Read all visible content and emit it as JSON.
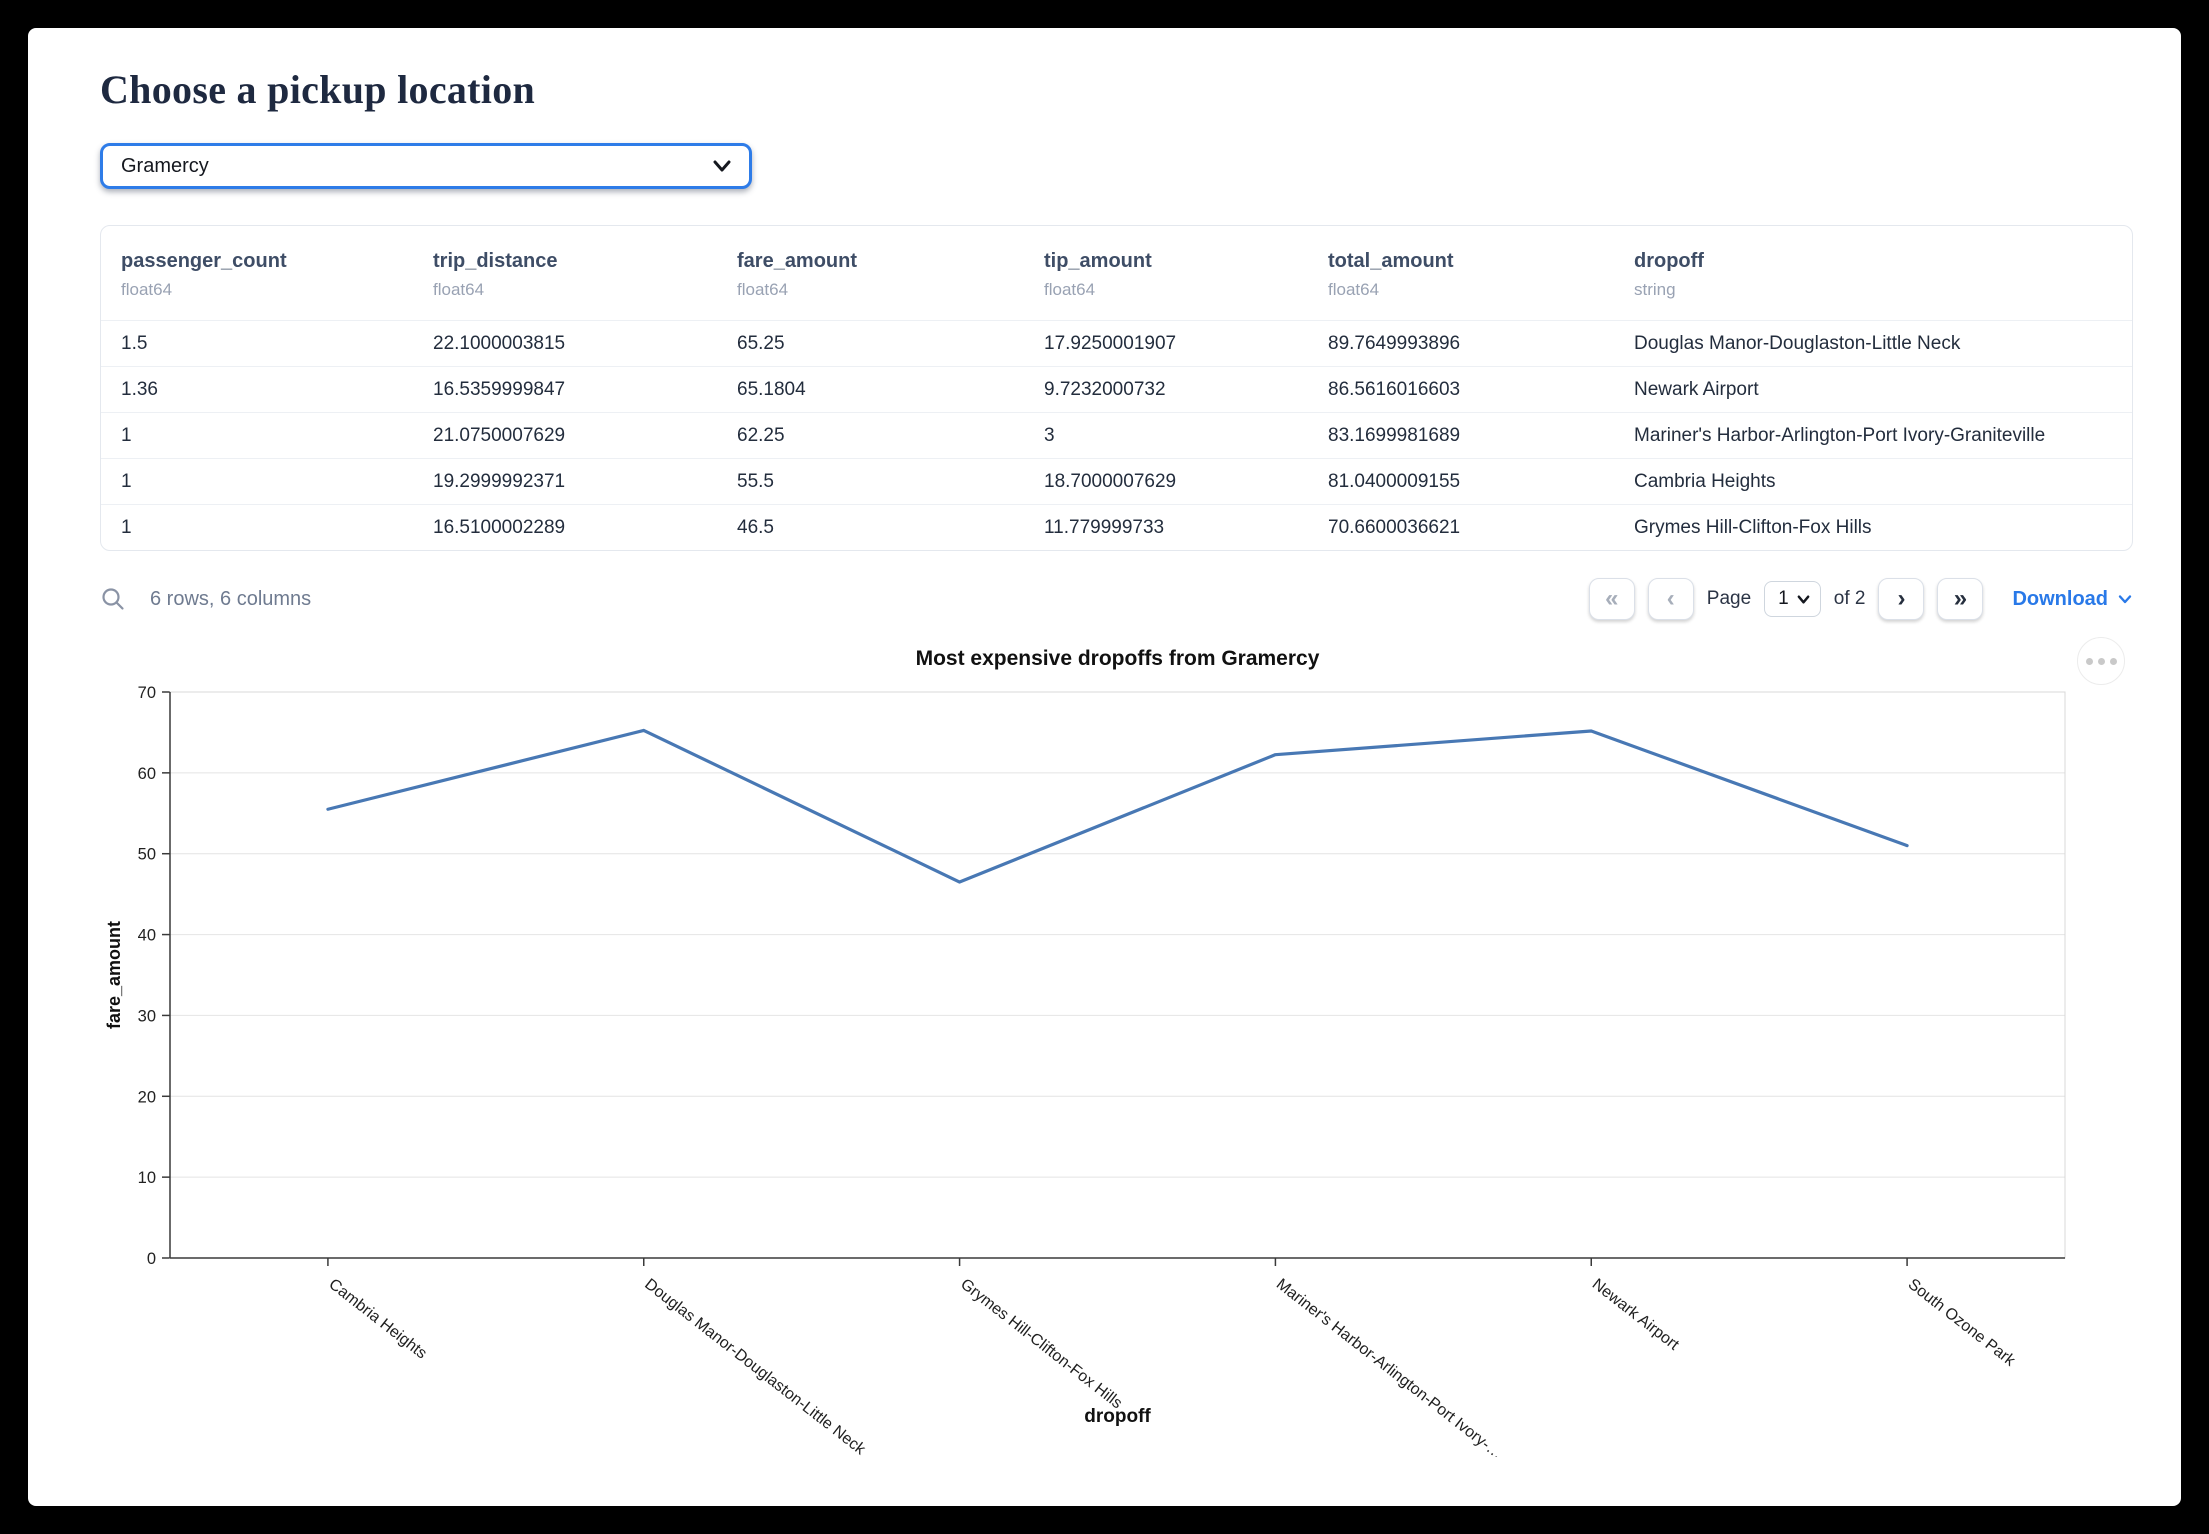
{
  "page": {
    "title": "Choose a pickup location"
  },
  "select": {
    "value": "Gramercy"
  },
  "table": {
    "columns": [
      {
        "name": "passenger_count",
        "dtype": "float64"
      },
      {
        "name": "trip_distance",
        "dtype": "float64"
      },
      {
        "name": "fare_amount",
        "dtype": "float64"
      },
      {
        "name": "tip_amount",
        "dtype": "float64"
      },
      {
        "name": "total_amount",
        "dtype": "float64"
      },
      {
        "name": "dropoff",
        "dtype": "string"
      }
    ],
    "rows": [
      [
        "1.5",
        "22.1000003815",
        "65.25",
        "17.9250001907",
        "89.7649993896",
        "Douglas Manor-Douglaston-Little Neck"
      ],
      [
        "1.36",
        "16.5359999847",
        "65.1804",
        "9.7232000732",
        "86.5616016603",
        "Newark Airport"
      ],
      [
        "1",
        "21.0750007629",
        "62.25",
        "3",
        "83.1699981689",
        "Mariner's Harbor-Arlington-Port Ivory-Graniteville"
      ],
      [
        "1",
        "19.2999992371",
        "55.5",
        "18.7000007629",
        "81.0400009155",
        "Cambria Heights"
      ],
      [
        "1",
        "16.5100002289",
        "46.5",
        "11.779999733",
        "70.6600036621",
        "Grymes Hill-Clifton-Fox Hills"
      ]
    ],
    "footer": {
      "summary": "6 rows, 6 columns",
      "first": "«",
      "prev": "‹",
      "page_label": "Page",
      "page_value": "1",
      "of_label": "of 2",
      "next": "›",
      "last": "»",
      "download_label": "Download"
    }
  },
  "chart_data": {
    "type": "line",
    "title": "Most expensive dropoffs from Gramercy",
    "xlabel": "dropoff",
    "ylabel": "fare_amount",
    "categories": [
      "Cambria Heights",
      "Douglas Manor-Douglaston-Little Neck",
      "Grymes Hill-Clifton-Fox Hills",
      "Mariner's Harbor-Arlington-Port Ivory-…",
      "Newark Airport",
      "South Ozone Park"
    ],
    "values": [
      55.5,
      65.25,
      46.5,
      62.25,
      65.1804,
      51
    ],
    "ylim": [
      0,
      70
    ],
    "yticks": [
      0,
      10,
      20,
      30,
      40,
      50,
      60,
      70
    ],
    "grid": true,
    "legend": "none",
    "line_color": "#4878b4",
    "grid_color": "#e4e4e4",
    "axis_color": "#3a3a3a"
  }
}
